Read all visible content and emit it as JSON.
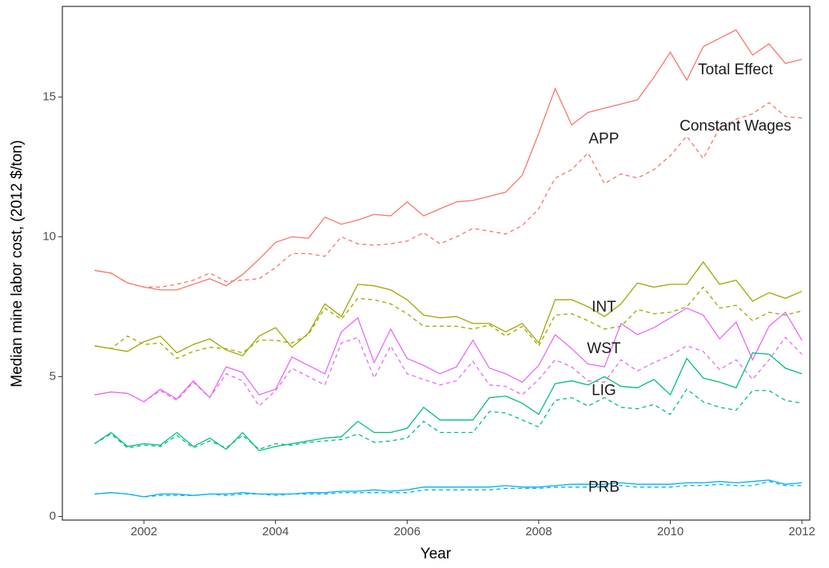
{
  "chart_data": {
    "type": "line",
    "xlabel": "Year",
    "ylabel": "Median mine labor cost, (2012 $/ton)",
    "xlim": [
      2000.76,
      2012.12
    ],
    "xticks": [
      2002,
      2004,
      2006,
      2008,
      2010,
      2012
    ],
    "ylim": [
      -0.13,
      18.24
    ],
    "yticks": [
      0,
      5,
      10,
      15
    ],
    "grid": false,
    "x": [
      2001.25,
      2001.5,
      2001.75,
      2002,
      2002.25,
      2002.5,
      2002.75,
      2003,
      2003.25,
      2003.5,
      2003.75,
      2004,
      2004.25,
      2004.5,
      2004.75,
      2005,
      2005.25,
      2005.5,
      2005.75,
      2006,
      2006.25,
      2006.5,
      2006.75,
      2007,
      2007.25,
      2007.5,
      2007.75,
      2008,
      2008.25,
      2008.5,
      2008.75,
      2009,
      2009.25,
      2009.5,
      2009.75,
      2010,
      2010.25,
      2010.5,
      2010.75,
      2011,
      2011.25,
      2011.5,
      2011.75,
      2012
    ],
    "series": [
      {
        "color": "#F8766D",
        "dashed": false,
        "values": [
          8.8,
          8.7,
          8.35,
          8.2,
          8.1,
          8.1,
          8.3,
          8.5,
          8.25,
          8.65,
          9.2,
          9.8,
          10.0,
          9.95,
          10.7,
          10.45,
          10.6,
          10.8,
          10.75,
          11.25,
          10.75,
          11.0,
          11.25,
          11.3,
          11.45,
          11.6,
          12.2,
          13.7,
          15.3,
          14.0,
          14.45,
          14.6,
          14.75,
          14.9,
          15.7,
          16.6,
          15.6,
          16.8,
          17.1,
          17.4,
          16.5,
          16.9,
          16.2,
          16.35
        ]
      },
      {
        "color": "#F8766D",
        "dashed": true,
        "values": [
          8.8,
          8.7,
          8.35,
          8.2,
          8.2,
          8.3,
          8.45,
          8.7,
          8.4,
          8.45,
          8.5,
          8.9,
          9.4,
          9.4,
          9.3,
          10.0,
          9.75,
          9.7,
          9.75,
          9.85,
          10.15,
          9.75,
          10.0,
          10.3,
          10.2,
          10.1,
          10.4,
          11.0,
          12.1,
          12.4,
          13.0,
          11.9,
          12.25,
          12.1,
          12.4,
          12.9,
          13.6,
          12.8,
          13.9,
          14.2,
          14.4,
          14.8,
          14.3,
          14.25
        ]
      },
      {
        "color": "#A3A500",
        "dashed": false,
        "values": [
          6.1,
          6.0,
          5.9,
          6.25,
          6.45,
          5.85,
          6.15,
          6.35,
          5.95,
          5.75,
          6.45,
          6.75,
          6.05,
          6.55,
          7.6,
          7.15,
          8.3,
          8.25,
          8.1,
          7.75,
          7.2,
          7.1,
          7.15,
          6.9,
          6.9,
          6.6,
          6.9,
          6.2,
          7.75,
          7.75,
          7.5,
          7.15,
          7.6,
          8.35,
          8.2,
          8.3,
          8.3,
          9.1,
          8.3,
          8.45,
          7.7,
          8.0,
          7.8,
          8.05
        ]
      },
      {
        "color": "#A3A500",
        "dashed": true,
        "values": [
          6.1,
          6.0,
          6.45,
          6.15,
          6.2,
          5.65,
          5.9,
          6.05,
          6.0,
          5.85,
          6.3,
          6.3,
          6.2,
          6.5,
          7.45,
          7.05,
          7.8,
          7.75,
          7.6,
          7.25,
          6.8,
          6.8,
          6.8,
          6.7,
          6.85,
          6.45,
          6.8,
          6.1,
          7.2,
          7.25,
          7.0,
          6.7,
          6.8,
          7.4,
          7.25,
          7.3,
          7.5,
          8.2,
          7.45,
          7.55,
          7.0,
          7.3,
          7.2,
          7.35
        ]
      },
      {
        "color": "#E76BF3",
        "dashed": false,
        "values": [
          4.35,
          4.45,
          4.4,
          4.1,
          4.55,
          4.2,
          4.85,
          4.25,
          5.35,
          5.15,
          4.35,
          4.55,
          5.7,
          5.4,
          5.1,
          6.6,
          7.1,
          5.5,
          6.7,
          5.65,
          5.4,
          5.1,
          5.35,
          6.3,
          5.3,
          5.1,
          4.8,
          5.4,
          6.5,
          6.0,
          5.45,
          5.35,
          6.9,
          6.5,
          6.75,
          7.1,
          7.45,
          7.2,
          6.35,
          6.95,
          5.6,
          6.8,
          7.3,
          6.3
        ]
      },
      {
        "color": "#E76BF3",
        "dashed": true,
        "values": [
          4.35,
          4.45,
          4.4,
          4.1,
          4.5,
          4.15,
          4.8,
          4.25,
          5.1,
          4.85,
          3.95,
          4.5,
          5.3,
          5.0,
          4.7,
          6.2,
          6.4,
          4.95,
          6.1,
          5.1,
          4.9,
          4.7,
          4.85,
          5.55,
          4.7,
          4.65,
          4.35,
          4.9,
          5.6,
          5.35,
          4.85,
          4.8,
          5.6,
          5.2,
          5.5,
          5.75,
          6.1,
          5.9,
          5.25,
          5.6,
          4.9,
          5.6,
          6.4,
          5.8
        ]
      },
      {
        "color": "#00BF7D",
        "dashed": false,
        "values": [
          2.6,
          3.0,
          2.5,
          2.6,
          2.55,
          3.0,
          2.5,
          2.8,
          2.4,
          3.0,
          2.35,
          2.5,
          2.6,
          2.7,
          2.8,
          2.85,
          3.4,
          3.0,
          3.0,
          3.15,
          3.9,
          3.45,
          3.45,
          3.45,
          4.25,
          4.3,
          4.05,
          3.65,
          4.75,
          4.85,
          4.7,
          5.0,
          4.65,
          4.6,
          4.9,
          4.35,
          5.65,
          4.95,
          4.8,
          4.6,
          5.85,
          5.8,
          5.3,
          5.1
        ]
      },
      {
        "color": "#00BF7D",
        "dashed": true,
        "values": [
          2.6,
          2.95,
          2.45,
          2.55,
          2.5,
          2.9,
          2.45,
          2.7,
          2.45,
          2.9,
          2.4,
          2.6,
          2.55,
          2.65,
          2.7,
          2.75,
          2.95,
          2.65,
          2.7,
          2.8,
          3.4,
          3.0,
          3.0,
          3.0,
          3.75,
          3.7,
          3.45,
          3.2,
          4.15,
          4.25,
          3.95,
          4.25,
          3.9,
          3.85,
          4.0,
          3.65,
          4.55,
          4.1,
          3.9,
          3.8,
          4.5,
          4.5,
          4.15,
          4.05
        ]
      },
      {
        "color": "#00B0F6",
        "dashed": false,
        "values": [
          0.8,
          0.85,
          0.8,
          0.7,
          0.8,
          0.8,
          0.75,
          0.8,
          0.8,
          0.85,
          0.8,
          0.8,
          0.8,
          0.85,
          0.85,
          0.9,
          0.9,
          0.95,
          0.9,
          0.95,
          1.05,
          1.05,
          1.05,
          1.05,
          1.05,
          1.1,
          1.05,
          1.05,
          1.1,
          1.15,
          1.15,
          1.15,
          1.2,
          1.15,
          1.15,
          1.15,
          1.2,
          1.2,
          1.25,
          1.2,
          1.25,
          1.3,
          1.15,
          1.2
        ]
      },
      {
        "color": "#00B0F6",
        "dashed": true,
        "values": [
          0.8,
          0.85,
          0.8,
          0.7,
          0.75,
          0.75,
          0.75,
          0.8,
          0.75,
          0.8,
          0.8,
          0.75,
          0.8,
          0.8,
          0.8,
          0.85,
          0.85,
          0.85,
          0.85,
          0.85,
          0.95,
          0.95,
          0.95,
          0.95,
          0.95,
          1.0,
          1.0,
          1.0,
          1.05,
          1.05,
          1.05,
          1.05,
          1.1,
          1.05,
          1.05,
          1.05,
          1.1,
          1.1,
          1.15,
          1.1,
          1.1,
          1.25,
          1.1,
          1.1
        ]
      }
    ],
    "annotations": [
      {
        "text": "Total Effect",
        "x": 2010.99,
        "y": 15.95
      },
      {
        "text": "Constant Wages",
        "x": 2010.99,
        "y": 13.94
      },
      {
        "text": "APP",
        "x": 2008.99,
        "y": 13.48
      },
      {
        "text": "INT",
        "x": 2008.99,
        "y": 7.47
      },
      {
        "text": "WST",
        "x": 2008.99,
        "y": 5.98
      },
      {
        "text": "LIG",
        "x": 2008.99,
        "y": 4.49
      },
      {
        "text": "PRB",
        "x": 2008.99,
        "y": 1.03
      }
    ]
  }
}
